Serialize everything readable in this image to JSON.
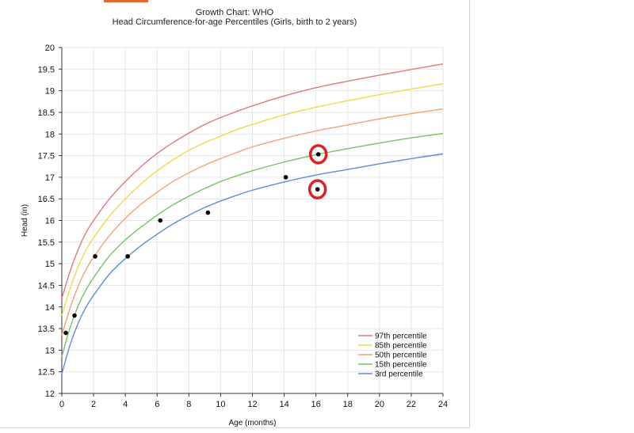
{
  "chart_data": {
    "type": "line",
    "title": "Growth Chart: WHO",
    "subtitle": "Head Circumference-for-age Percentiles (Girls, birth to 2 years)",
    "xlabel": "Age (months)",
    "ylabel": "Head (in)",
    "xlim": [
      0,
      24
    ],
    "ylim": [
      12,
      20
    ],
    "xticks": [
      0,
      2,
      4,
      6,
      8,
      10,
      12,
      14,
      16,
      18,
      20,
      22,
      24
    ],
    "yticks": [
      12,
      12.5,
      13,
      13.5,
      14,
      14.5,
      15,
      15.5,
      16,
      16.5,
      17,
      17.5,
      18,
      18.5,
      19,
      19.5,
      20
    ],
    "grid": true,
    "legend_position": "bottom-right",
    "x": [
      0,
      0.5,
      1,
      1.5,
      2,
      3,
      4,
      5,
      6,
      7,
      8,
      9,
      10,
      11,
      12,
      14,
      16,
      18,
      20,
      22,
      24
    ],
    "series": [
      {
        "name": "97th percentile",
        "color": "#e0787a",
        "values": [
          14.2,
          14.8,
          15.3,
          15.7,
          16.0,
          16.5,
          16.9,
          17.25,
          17.55,
          17.8,
          18.02,
          18.22,
          18.38,
          18.52,
          18.65,
          18.88,
          19.07,
          19.22,
          19.36,
          19.49,
          19.62
        ]
      },
      {
        "name": "85th percentile",
        "color": "#f2d84a",
        "values": [
          13.8,
          14.4,
          14.9,
          15.3,
          15.6,
          16.1,
          16.5,
          16.85,
          17.15,
          17.4,
          17.62,
          17.8,
          17.95,
          18.1,
          18.22,
          18.44,
          18.62,
          18.77,
          18.91,
          19.04,
          19.16
        ]
      },
      {
        "name": "50th percentile",
        "color": "#f3a36f",
        "values": [
          13.35,
          13.95,
          14.45,
          14.85,
          15.15,
          15.65,
          16.05,
          16.38,
          16.65,
          16.9,
          17.1,
          17.28,
          17.43,
          17.57,
          17.7,
          17.9,
          18.07,
          18.21,
          18.35,
          18.47,
          18.58
        ]
      },
      {
        "name": "15th percentile",
        "color": "#72c460",
        "values": [
          12.85,
          13.5,
          14.0,
          14.38,
          14.68,
          15.18,
          15.55,
          15.85,
          16.12,
          16.36,
          16.56,
          16.74,
          16.9,
          17.03,
          17.15,
          17.35,
          17.52,
          17.66,
          17.79,
          17.91,
          18.01
        ]
      },
      {
        "name": "3rd percentile",
        "color": "#5a8ddf",
        "values": [
          12.45,
          13.1,
          13.6,
          13.98,
          14.27,
          14.76,
          15.12,
          15.42,
          15.68,
          15.92,
          16.12,
          16.3,
          16.45,
          16.58,
          16.7,
          16.89,
          17.05,
          17.18,
          17.31,
          17.43,
          17.54
        ]
      }
    ],
    "measurements": [
      {
        "x": 0.25,
        "y": 13.4,
        "circled": false
      },
      {
        "x": 0.8,
        "y": 13.8,
        "circled": false
      },
      {
        "x": 2.1,
        "y": 15.17,
        "circled": false
      },
      {
        "x": 4.15,
        "y": 15.17,
        "circled": false
      },
      {
        "x": 6.2,
        "y": 16.0,
        "circled": false
      },
      {
        "x": 9.2,
        "y": 16.18,
        "circled": false
      },
      {
        "x": 14.1,
        "y": 17.0,
        "circled": false
      },
      {
        "x": 16.15,
        "y": 17.53,
        "circled": true
      },
      {
        "x": 16.1,
        "y": 16.72,
        "circled": true
      }
    ],
    "highlight_color": "#e02020"
  }
}
